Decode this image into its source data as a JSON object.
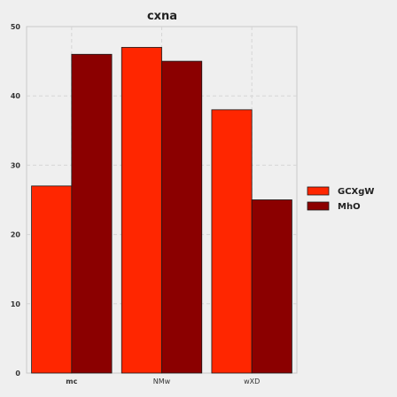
{
  "chart_data": {
    "type": "bar",
    "title": "cxna",
    "xlabel": "",
    "ylabel": "",
    "categories": [
      "mc",
      "NMw",
      "wXD"
    ],
    "series": [
      {
        "name": "GCXgW",
        "values": [
          27,
          47,
          38
        ],
        "color": "#ff2600"
      },
      {
        "name": "MhO",
        "values": [
          46,
          45,
          25
        ],
        "color": "#8b0000"
      }
    ],
    "ylim": [
      0,
      50
    ],
    "yticks": [
      0,
      10,
      20,
      30,
      40,
      50
    ],
    "grid": true,
    "legend_position": "right"
  }
}
